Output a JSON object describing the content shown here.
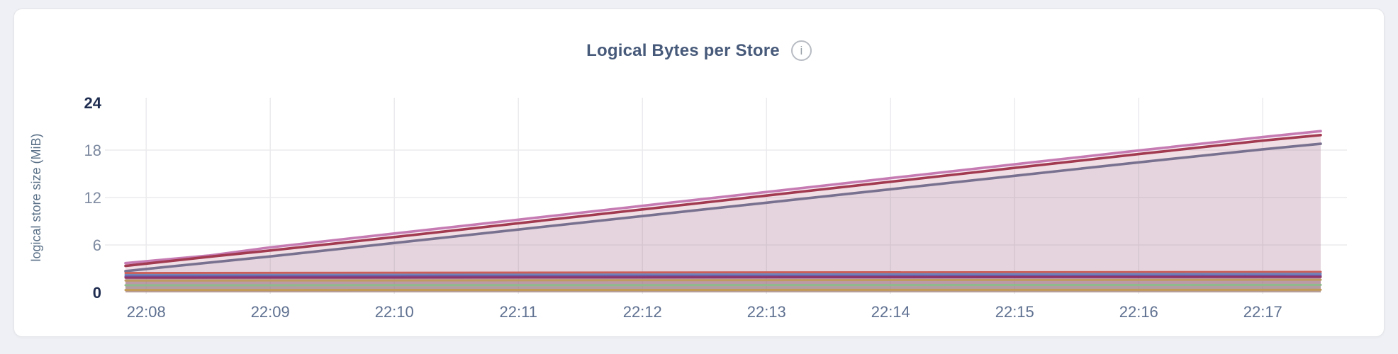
{
  "card": {
    "title": "Logical Bytes per Store",
    "info_icon": "i"
  },
  "colors": {
    "page_background": "#eef0f5",
    "card_background": "#ffffff",
    "grid": "#ebebee",
    "tick": "#7e8aa0",
    "tick_strong": "#1e2c50",
    "xtick": "#5e7090",
    "axis_label": "#5a7087",
    "title": "#475a7a"
  },
  "chart_data": {
    "type": "area",
    "title": "Logical Bytes per Store",
    "xlabel": "",
    "ylabel": "logical store size (MiB)",
    "ylim": [
      0,
      24
    ],
    "y_ticks": [
      0,
      6,
      12,
      18,
      24
    ],
    "y_grid": [
      6,
      12,
      18
    ],
    "grid": true,
    "legend_position": "none",
    "x_domain_minutes": [
      -0.167,
      9.467
    ],
    "x_ticks": [
      {
        "label": "22:08",
        "t": 0
      },
      {
        "label": "22:09",
        "t": 1
      },
      {
        "label": "22:10",
        "t": 2
      },
      {
        "label": "22:11",
        "t": 3
      },
      {
        "label": "22:12",
        "t": 4
      },
      {
        "label": "22:13",
        "t": 5
      },
      {
        "label": "22:14",
        "t": 6
      },
      {
        "label": "22:15",
        "t": 7
      },
      {
        "label": "22:16",
        "t": 8
      },
      {
        "label": "22:17",
        "t": 9
      }
    ],
    "series": [
      {
        "name": "pink",
        "color": "#c67cb3",
        "fill_opacity": 0.1,
        "lw": 3.6,
        "points": [
          [
            -0.167,
            3.7
          ],
          [
            0.5,
            4.65
          ],
          [
            1,
            5.7
          ],
          [
            2,
            7.45
          ],
          [
            3,
            9.2
          ],
          [
            4,
            10.95
          ],
          [
            5,
            12.7
          ],
          [
            6,
            14.45
          ],
          [
            7,
            16.2
          ],
          [
            8,
            17.95
          ],
          [
            9,
            19.65
          ],
          [
            9.467,
            20.4
          ]
        ]
      },
      {
        "name": "crimson",
        "color": "#a23a50",
        "fill_opacity": 0.1,
        "lw": 3.6,
        "points": [
          [
            -0.167,
            3.35
          ],
          [
            0.5,
            4.5
          ],
          [
            1,
            5.3
          ],
          [
            2,
            7.0
          ],
          [
            3,
            8.75
          ],
          [
            4,
            10.5
          ],
          [
            5,
            12.25
          ],
          [
            6,
            14.0
          ],
          [
            7,
            15.75
          ],
          [
            8,
            17.5
          ],
          [
            9,
            19.2
          ],
          [
            9.467,
            19.9
          ]
        ]
      },
      {
        "name": "slate",
        "color": "#78718f",
        "fill_opacity": 0.09,
        "lw": 3.6,
        "points": [
          [
            -0.167,
            2.7
          ],
          [
            1,
            4.55
          ],
          [
            2,
            6.25
          ],
          [
            3,
            7.95
          ],
          [
            4,
            9.65
          ],
          [
            5,
            11.35
          ],
          [
            6,
            13.05
          ],
          [
            7,
            14.75
          ],
          [
            8,
            16.45
          ],
          [
            9,
            18.1
          ],
          [
            9.467,
            18.8
          ]
        ]
      },
      {
        "name": "salmon",
        "color": "#cc5f58",
        "fill_opacity": 0.14,
        "lw": 3.0,
        "points": [
          [
            -0.167,
            2.45
          ],
          [
            9.467,
            2.6
          ]
        ]
      },
      {
        "name": "blue",
        "color": "#6e85ba",
        "fill_opacity": 0.14,
        "lw": 3.0,
        "points": [
          [
            -0.167,
            2.2
          ],
          [
            9.467,
            2.35
          ]
        ]
      },
      {
        "name": "violet",
        "color": "#7050a0",
        "fill_opacity": 0.14,
        "lw": 3.0,
        "points": [
          [
            -0.167,
            2.0
          ],
          [
            9.467,
            2.1
          ]
        ]
      },
      {
        "name": "plum",
        "color": "#8e3766",
        "fill_opacity": 0.14,
        "lw": 3.0,
        "points": [
          [
            -0.167,
            1.85
          ],
          [
            9.467,
            1.95
          ]
        ]
      },
      {
        "name": "tan",
        "color": "#bf9b60",
        "fill_opacity": 0.14,
        "lw": 3.0,
        "points": [
          [
            -0.167,
            1.5
          ],
          [
            9.467,
            1.6
          ]
        ]
      },
      {
        "name": "green",
        "color": "#8eba8c",
        "fill_opacity": 0.14,
        "lw": 3.0,
        "points": [
          [
            -0.167,
            0.9
          ],
          [
            9.467,
            0.95
          ]
        ]
      },
      {
        "name": "gold",
        "color": "#c29a58",
        "fill_opacity": 0.14,
        "lw": 3.0,
        "points": [
          [
            -0.167,
            0.3
          ],
          [
            9.467,
            0.33
          ]
        ]
      }
    ]
  }
}
